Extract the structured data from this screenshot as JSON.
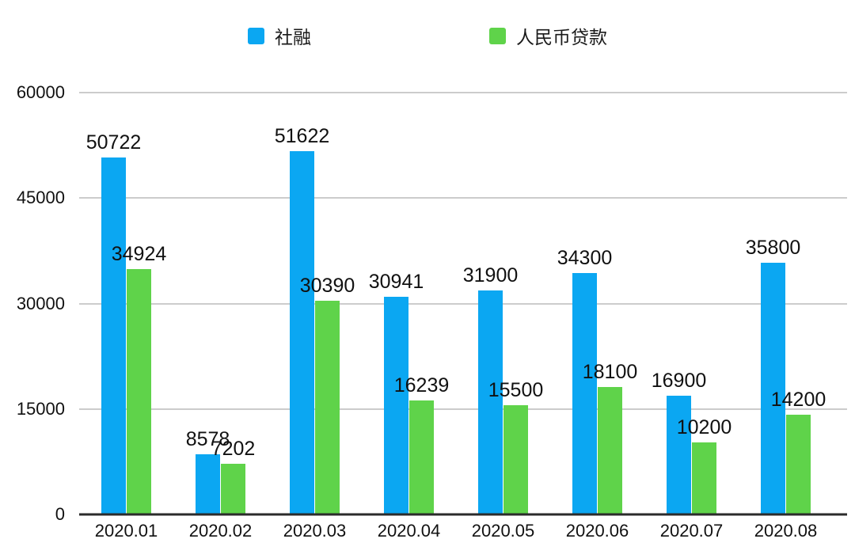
{
  "chart_data": {
    "type": "bar",
    "title": "",
    "xlabel": "",
    "ylabel": "",
    "categories": [
      "2020.01",
      "2020.02",
      "2020.03",
      "2020.04",
      "2020.05",
      "2020.06",
      "2020.07",
      "2020.08"
    ],
    "series": [
      {
        "name": "社融",
        "color": "#0ba7f2",
        "values": [
          50722,
          8578,
          51622,
          30941,
          31900,
          34300,
          16900,
          35800
        ]
      },
      {
        "name": "人民币贷款",
        "color": "#5fd34a",
        "values": [
          34924,
          7202,
          30390,
          16239,
          15500,
          18100,
          10200,
          14200
        ]
      }
    ],
    "ylim": [
      0,
      60000
    ],
    "yticks": [
      0,
      15000,
      30000,
      45000,
      60000
    ],
    "grid": true,
    "legend_position": "top"
  },
  "style": {
    "background": "#ffffff",
    "grid_color": "#cccccc",
    "axis_line_color": "#2b2b2b",
    "text_color": "#111111"
  }
}
